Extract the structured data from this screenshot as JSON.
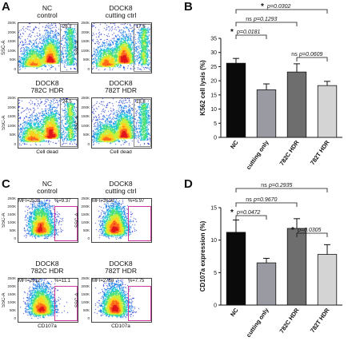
{
  "panels": {
    "A": {
      "letter": "A",
      "plots": [
        {
          "title": "NC\ncontrol",
          "value": "28.2",
          "ticks": [
            "250K",
            "200K",
            "150K",
            "100K",
            "50K",
            "0"
          ]
        },
        {
          "title": "DOCK8\ncutting ctrl",
          "value": "17.6",
          "ticks": [
            "250K",
            "200K",
            "150K",
            "100K",
            "50K",
            "0"
          ]
        },
        {
          "title": "DOCK8\n782C HDR",
          "value": "24.5",
          "ticks": [
            "250K",
            "200K",
            "150K",
            "100K",
            "50K",
            "0"
          ]
        },
        {
          "title": "DOCK8\n782T HDR",
          "value": "18.8",
          "ticks": [
            "250K",
            "200K",
            "150K",
            "100K",
            "50K",
            "0"
          ]
        }
      ],
      "ylabel": "SSC-A",
      "xlabel": "Cell dead"
    },
    "C": {
      "letter": "C",
      "plots": [
        {
          "title": "NC\ncontrol",
          "mfi": "MFI=2533",
          "pct": "%=9.37",
          "ticks": [
            "250K",
            "200K",
            "150K",
            "100K",
            "50K",
            "0"
          ]
        },
        {
          "title": "DOCK8\ncutting ctrl",
          "mfi": "MFI=2616",
          "pct": "%=5.97",
          "ticks": [
            "250K",
            "200K",
            "150K",
            "100K",
            "50K",
            "0"
          ]
        },
        {
          "title": "DOCK8\n782C HDR",
          "mfi": "MFI=2912",
          "pct": "%=11.1",
          "ticks": [
            "250K",
            "200K",
            "150K",
            "100K",
            "50K",
            "0"
          ]
        },
        {
          "title": "DOCK8\n782T HDR",
          "mfi": "MFI=2768",
          "pct": "%=7.75",
          "ticks": [
            "250K",
            "200K",
            "150K",
            "100K",
            "50K",
            "0"
          ]
        }
      ],
      "ylabel": "SSC-A",
      "xlabel": "CD107a"
    },
    "B": {
      "letter": "B"
    },
    "D": {
      "letter": "D"
    }
  },
  "chart_data": [
    {
      "type": "bar",
      "panel": "B",
      "categories": [
        "NC",
        "cutting only",
        "782C HDR",
        "782T HDR"
      ],
      "values": [
        26.2,
        16.8,
        23.1,
        18.3
      ],
      "errors": [
        1.7,
        2.1,
        2.9,
        1.5
      ],
      "colors": [
        "#0a0a0a",
        "#9a9aa2",
        "#6e6e6e",
        "#d4d4d4"
      ],
      "title": "",
      "xlabel": "",
      "ylabel": "K562 cell lysis (%)",
      "ylim": [
        0,
        35
      ],
      "yticks": [
        "0",
        "5",
        "10",
        "15",
        "20",
        "25",
        "30",
        "35"
      ],
      "annotations": [
        {
          "from": 0,
          "to": 3,
          "star": "*",
          "text": "p=0.0302"
        },
        {
          "from": 0,
          "to": 2,
          "star": "ns",
          "text": "p=0.1293"
        },
        {
          "from": 0,
          "to": 1,
          "star": "*",
          "text": "p=0.0181"
        },
        {
          "from": 2,
          "to": 3,
          "star": "ns",
          "text": "p=0.0609"
        }
      ]
    },
    {
      "type": "bar",
      "panel": "D",
      "categories": [
        "NC",
        "cutting only",
        "782C HDR",
        "782T HDR"
      ],
      "values": [
        11.2,
        6.5,
        11.8,
        7.8
      ],
      "errors": [
        1.9,
        0.7,
        1.5,
        1.5
      ],
      "colors": [
        "#0a0a0a",
        "#9a9aa2",
        "#6e6e6e",
        "#d4d4d4"
      ],
      "title": "",
      "xlabel": "",
      "ylabel": "CD107a expression (%)",
      "ylim": [
        0,
        15
      ],
      "yticks": [
        "0",
        "5",
        "10",
        "15"
      ],
      "annotations": [
        {
          "from": 0,
          "to": 3,
          "star": "ns",
          "text": "p=0.2935"
        },
        {
          "from": 0,
          "to": 2,
          "star": "ns",
          "text": "p=0.9670"
        },
        {
          "from": 0,
          "to": 1,
          "star": "*",
          "text": "p=0.0472"
        },
        {
          "from": 2,
          "to": 3,
          "star": "*",
          "text": "p=0.0305"
        }
      ]
    }
  ]
}
